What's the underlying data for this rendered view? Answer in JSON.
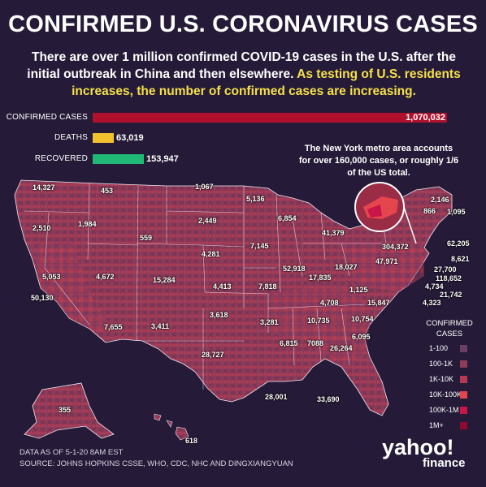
{
  "title": "CONFIRMED U.S. CORONAVIRUS CASES",
  "subtitle_plain": "There are over 1 million confirmed COVID-19 cases in the U.S. after the initial outbreak in China and then elsewhere.",
  "subtitle_highlight": "As testing of U.S. residents increases, the number of confirmed cases are increasing.",
  "totals": {
    "confirmed_label": "CONFIRMED CASES",
    "confirmed_value": "1,070,032",
    "confirmed": 1070032,
    "deaths_label": "DEATHS",
    "deaths_value": "63,019",
    "deaths": 63019,
    "recovered_label": "RECOVERED",
    "recovered_value": "153,947",
    "recovered": 153947,
    "colors": {
      "confirmed": "#b0102c",
      "deaths": "#f2c12e",
      "recovered": "#1fb877"
    }
  },
  "ny_note": "The New York metro area accounts for over 160,000 cases, or roughly 1/6 of the US total.",
  "state_values": {
    "wa": "14,327",
    "mt": "453",
    "nd": "1,067",
    "or": "2,510",
    "id": "1,984",
    "sd": "2,449",
    "mn": "5,136",
    "wi": "6,854",
    "mi": "41,379",
    "wy": "559",
    "ne": "4,281",
    "ia": "7,145",
    "nv": "5,053",
    "ut": "4,672",
    "co": "15,284",
    "ks": "4,413",
    "ca": "50,130",
    "il": "52,918",
    "in": "17,835",
    "oh": "18,027",
    "pa": "47,971",
    "ny": "304,372",
    "mo": "7,818",
    "ky": "4,708",
    "wv": "1,125",
    "va": "15,847",
    "az": "7,655",
    "nm": "3,411",
    "ok": "3,618",
    "ar": "3,281",
    "tn": "10,735",
    "nc": "10,754",
    "tx": "28,727",
    "ms": "6,815",
    "al": "7088",
    "ga": "26,264",
    "sc": "6,095",
    "la": "28,001",
    "fl": "33,690",
    "ak": "355",
    "hi": "618",
    "vt": "866",
    "nh": "2,146",
    "me": "1,095",
    "ma": "62,205",
    "ri": "8,621",
    "ct": "27,700",
    "nj": "118,652",
    "de": "4,734",
    "md": "21,742",
    "dc": "4,323"
  },
  "legend": {
    "title": "CONFIRMED CASES",
    "items": [
      {
        "label": "1-100",
        "color": "#6a3f63"
      },
      {
        "label": "100-1K",
        "color": "#8f3c5a"
      },
      {
        "label": "1K-10K",
        "color": "#b53952"
      },
      {
        "label": "10K-100K",
        "color": "#e5454d"
      },
      {
        "label": "100K-1M",
        "color": "#c8164a"
      },
      {
        "label": "1M+",
        "color": "#8f0a2e"
      }
    ]
  },
  "footer": {
    "data_date": "DATA AS OF 5-1-20 8AM EST",
    "source": "SOURCE:  JOHNS HOPKINS CSSE, WHO, CDC, NHC AND DINGXIANGYUAN"
  },
  "logo": {
    "main": "yahoo!",
    "sub": "finance"
  }
}
